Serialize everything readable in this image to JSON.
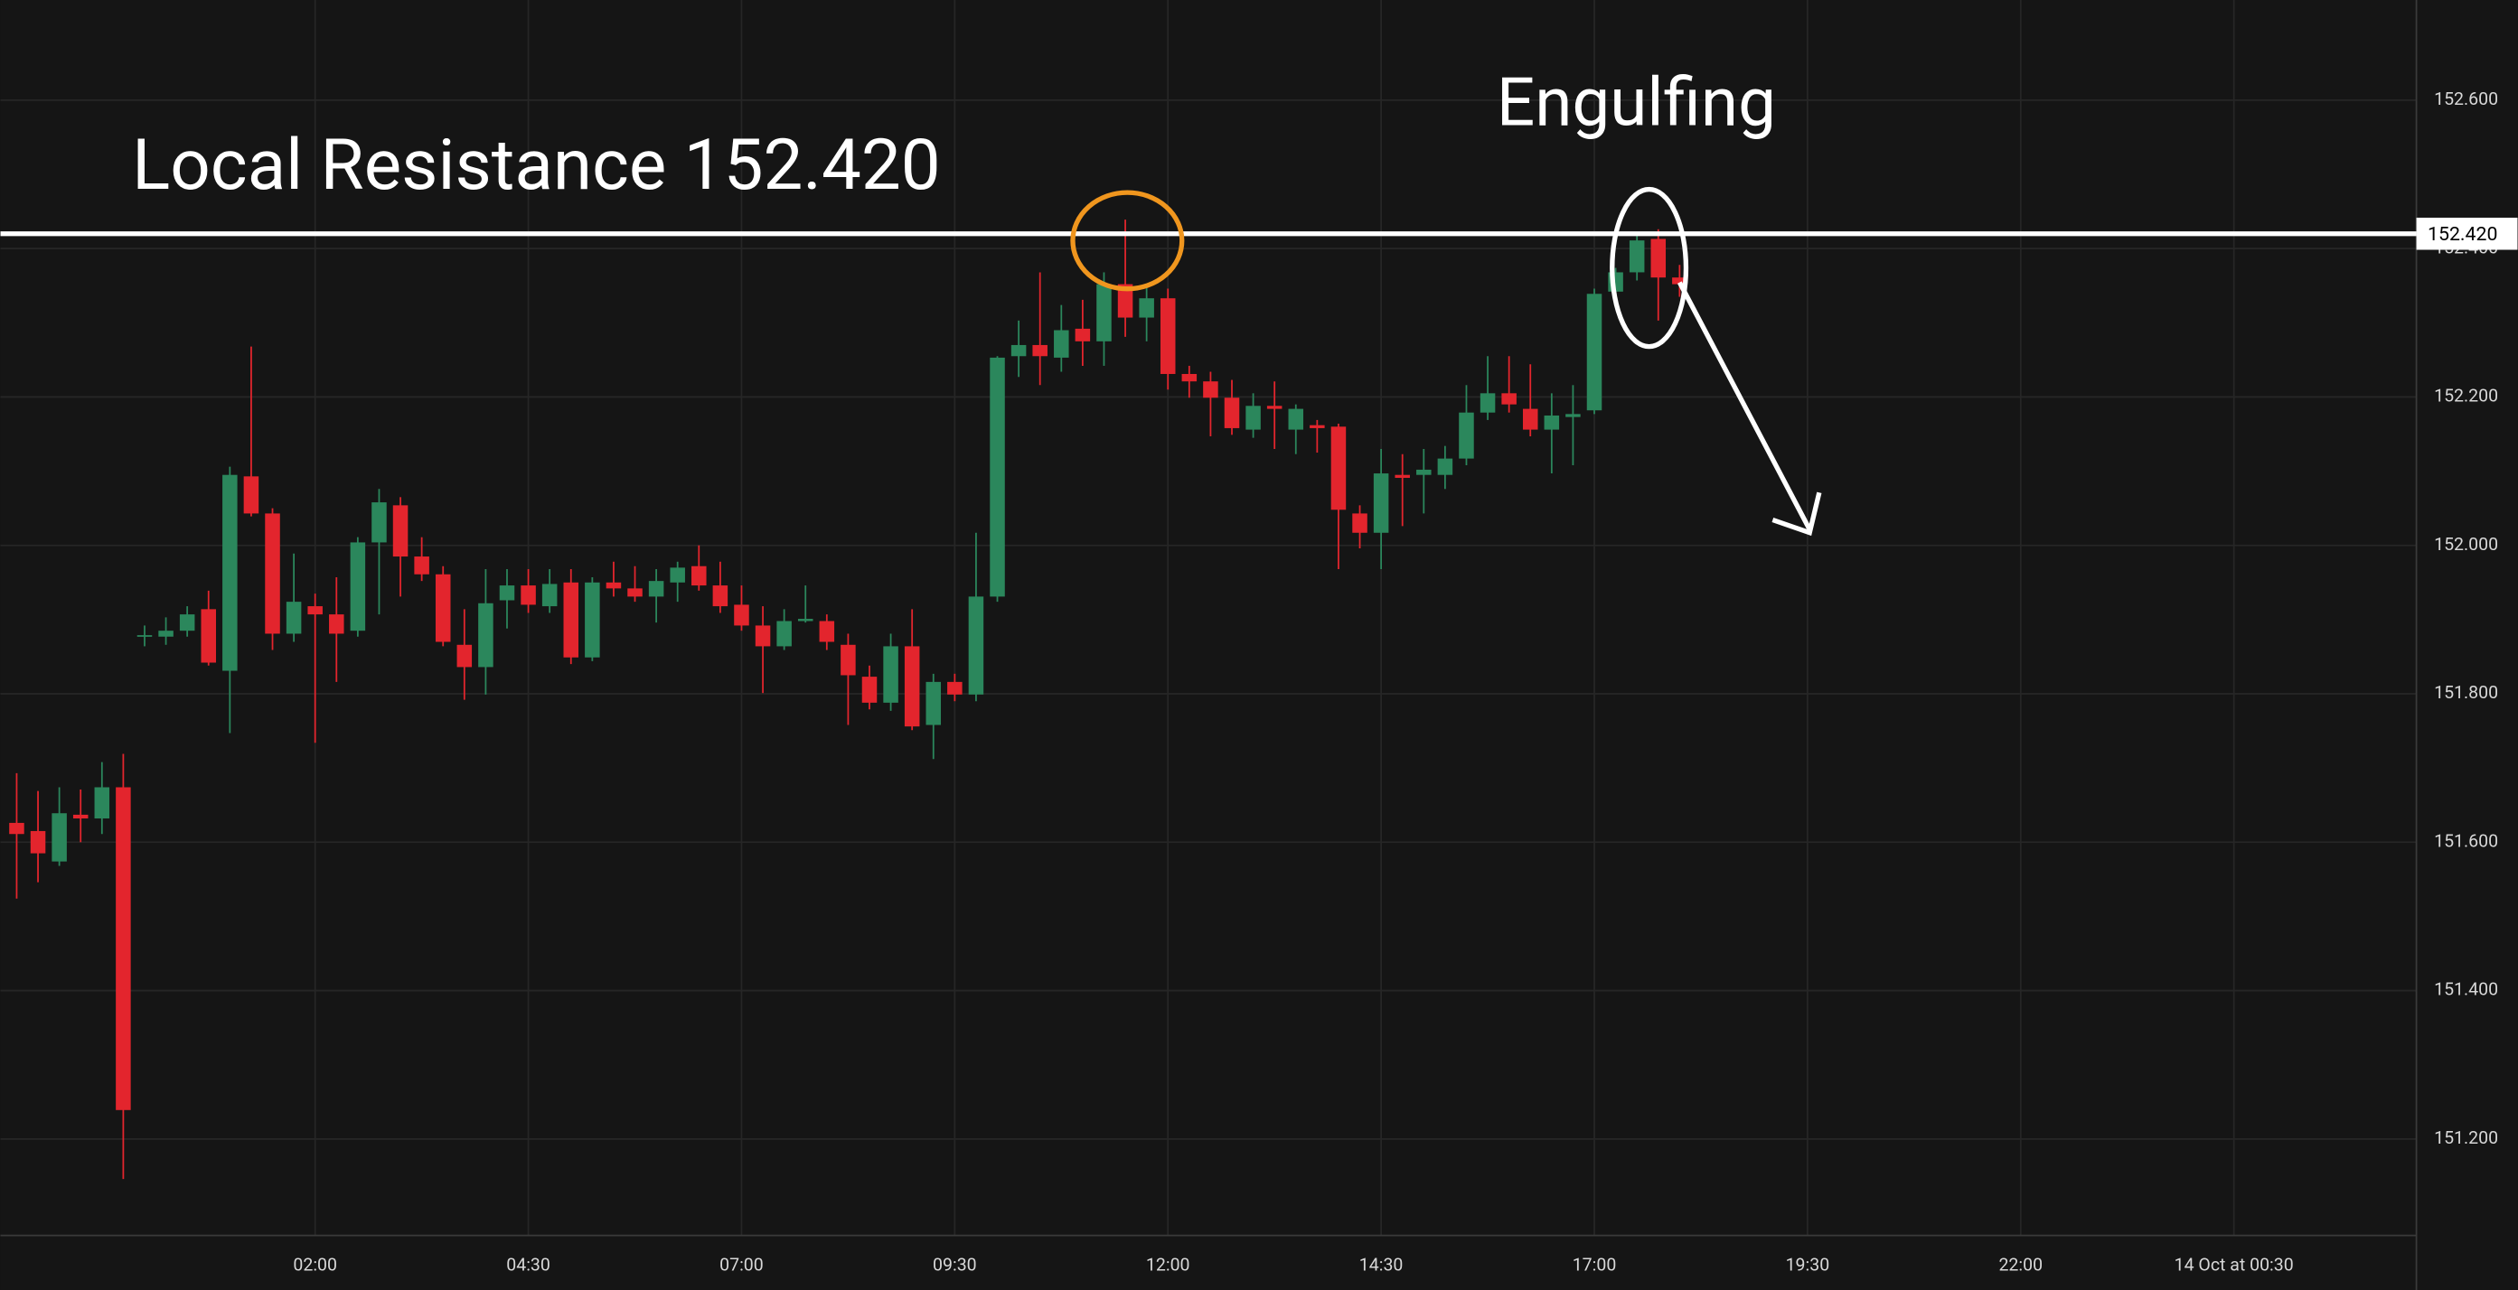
{
  "chart_data": {
    "type": "candlestick",
    "xlim": [
      -1.69,
      26.64
    ],
    "ylim": [
      151.07,
      152.735
    ],
    "xticks": [
      {
        "value": 2,
        "label": "02:00"
      },
      {
        "value": 4.5,
        "label": "04:30"
      },
      {
        "value": 7,
        "label": "07:00"
      },
      {
        "value": 9.5,
        "label": "09:30"
      },
      {
        "value": 12,
        "label": "12:00"
      },
      {
        "value": 14.5,
        "label": "14:30"
      },
      {
        "value": 17,
        "label": "17:00"
      },
      {
        "value": 19.5,
        "label": "19:30"
      },
      {
        "value": 22,
        "label": "22:00"
      },
      {
        "value": 24.5,
        "label": "14 Oct at 00:30"
      }
    ],
    "yticks": [
      {
        "value": 151.2,
        "label": "151.200"
      },
      {
        "value": 151.4,
        "label": "151.400"
      },
      {
        "value": 151.6,
        "label": "151.600"
      },
      {
        "value": 151.8,
        "label": "151.800"
      },
      {
        "value": 152,
        "label": "152.000"
      },
      {
        "value": 152.2,
        "label": "152.200"
      },
      {
        "value": 152.4,
        "label": "152.400"
      },
      {
        "value": 152.6,
        "label": "152.600"
      }
    ],
    "grid": true,
    "up_color": "#2b875c",
    "down_color": "#e3252d",
    "x": [
      -1.5,
      -1.25,
      -1,
      -0.75,
      -0.5,
      -0.25,
      0,
      0.25,
      0.5,
      0.75,
      1,
      1.25,
      1.5,
      1.75,
      2,
      2.25,
      2.5,
      2.75,
      3,
      3.25,
      3.5,
      3.75,
      4,
      4.25,
      4.5,
      4.75,
      5,
      5.25,
      5.5,
      5.75,
      6,
      6.25,
      6.5,
      6.75,
      7,
      7.25,
      7.5,
      7.75,
      8,
      8.25,
      8.5,
      8.75,
      9,
      9.25,
      9.5,
      9.75,
      10,
      10.25,
      10.5,
      10.75,
      11,
      11.25,
      11.5,
      11.75,
      12,
      12.25,
      12.5,
      12.75,
      13,
      13.25,
      13.5,
      13.75,
      14,
      14.25,
      14.5,
      14.75,
      15,
      15.25,
      15.5,
      15.75,
      16,
      16.25,
      16.5,
      16.75,
      17,
      17.25,
      17.5,
      17.75,
      18
    ],
    "open": [
      151.626,
      151.615,
      151.574,
      151.637,
      151.632,
      151.674,
      151.877,
      151.877,
      151.885,
      151.914,
      151.831,
      152.093,
      152.043,
      151.881,
      151.918,
      151.907,
      151.885,
      152.004,
      152.054,
      151.985,
      151.961,
      151.866,
      151.836,
      151.926,
      151.946,
      151.918,
      151.95,
      151.849,
      151.95,
      151.942,
      151.931,
      151.95,
      151.972,
      151.946,
      151.92,
      151.892,
      151.864,
      151.898,
      151.898,
      151.866,
      151.823,
      151.788,
      151.864,
      151.758,
      151.816,
      151.799,
      151.931,
      152.255,
      152.27,
      152.253,
      152.292,
      152.275,
      152.352,
      152.307,
      152.333,
      152.231,
      152.221,
      152.199,
      152.156,
      152.188,
      152.156,
      152.162,
      152.16,
      152.043,
      152.017,
      152.095,
      152.095,
      152.095,
      152.117,
      152.179,
      152.205,
      152.184,
      152.156,
      152.173,
      152.182,
      152.342,
      152.368,
      152.413,
      152.361
    ],
    "high": [
      151.693,
      151.669,
      151.674,
      151.671,
      151.708,
      151.719,
      151.892,
      151.903,
      151.918,
      151.939,
      152.106,
      152.268,
      152.05,
      151.989,
      151.935,
      151.957,
      152.011,
      152.076,
      152.065,
      152.011,
      151.972,
      151.914,
      151.968,
      151.968,
      151.968,
      151.968,
      151.968,
      151.957,
      151.978,
      151.972,
      151.968,
      151.978,
      152.0,
      151.978,
      151.946,
      151.918,
      151.914,
      151.946,
      151.907,
      151.881,
      151.838,
      151.881,
      151.914,
      151.827,
      151.827,
      152.017,
      152.255,
      152.303,
      152.368,
      152.324,
      152.331,
      152.368,
      152.439,
      152.35,
      152.346,
      152.242,
      152.234,
      152.223,
      152.205,
      152.221,
      152.19,
      152.169,
      152.164,
      152.054,
      152.13,
      152.123,
      152.13,
      152.134,
      152.216,
      152.255,
      152.255,
      152.244,
      152.205,
      152.216,
      152.346,
      152.374,
      152.422,
      152.426,
      152.378
    ],
    "low": [
      151.524,
      151.546,
      151.568,
      151.6,
      151.611,
      151.146,
      151.864,
      151.866,
      151.877,
      151.838,
      151.747,
      152.039,
      151.859,
      151.87,
      151.734,
      151.816,
      151.877,
      151.907,
      151.931,
      151.952,
      151.864,
      151.792,
      151.799,
      151.888,
      151.909,
      151.909,
      151.84,
      151.844,
      151.931,
      151.924,
      151.896,
      151.924,
      151.939,
      151.909,
      151.885,
      151.801,
      151.859,
      151.896,
      151.859,
      151.758,
      151.779,
      151.777,
      151.751,
      151.712,
      151.79,
      151.79,
      151.924,
      152.227,
      152.216,
      152.234,
      152.242,
      152.242,
      152.281,
      152.275,
      152.21,
      152.199,
      152.147,
      152.149,
      152.145,
      152.13,
      152.123,
      152.125,
      151.968,
      151.996,
      151.968,
      152.026,
      152.043,
      152.076,
      152.108,
      152.169,
      152.179,
      152.147,
      152.097,
      152.108,
      152.177,
      152.324,
      152.357,
      152.303,
      152.335
    ],
    "close": [
      151.611,
      151.585,
      151.639,
      151.632,
      151.674,
      151.239,
      151.879,
      151.885,
      151.907,
      151.842,
      152.095,
      152.043,
      151.881,
      151.924,
      151.907,
      151.881,
      152.004,
      152.058,
      151.985,
      151.961,
      151.87,
      151.836,
      151.922,
      151.946,
      151.92,
      151.948,
      151.849,
      151.95,
      151.942,
      151.931,
      151.952,
      151.97,
      151.946,
      151.918,
      151.892,
      151.864,
      151.898,
      151.901,
      151.87,
      151.825,
      151.788,
      151.864,
      151.756,
      151.816,
      151.799,
      151.931,
      152.253,
      152.27,
      152.255,
      152.29,
      152.275,
      152.352,
      152.307,
      152.333,
      152.231,
      152.221,
      152.199,
      152.158,
      152.188,
      152.184,
      152.184,
      152.158,
      152.048,
      152.017,
      152.097,
      152.091,
      152.102,
      152.117,
      152.179,
      152.205,
      152.19,
      152.156,
      152.175,
      152.177,
      152.339,
      152.368,
      152.411,
      152.361,
      152.352
    ],
    "resistance": {
      "value": 152.42,
      "label": "152.420",
      "annotation": "Local Resistance 152.420"
    },
    "pattern_annotation": "Engulfing"
  }
}
